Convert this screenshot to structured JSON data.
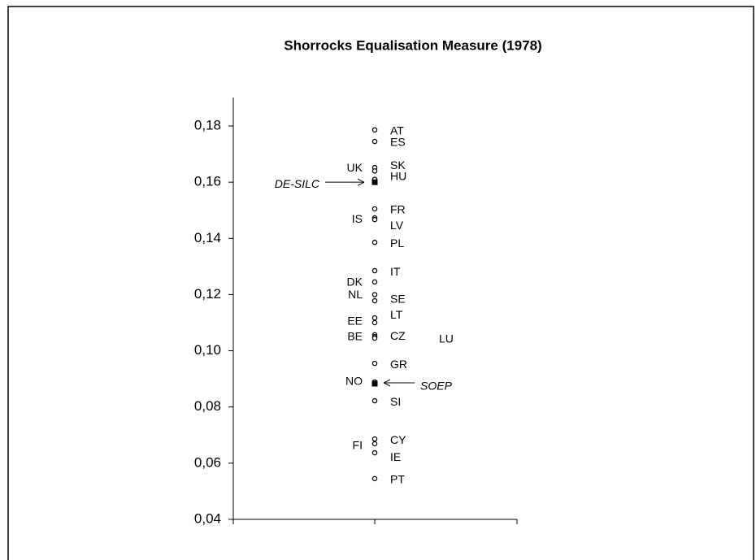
{
  "chart_data": {
    "type": "dotplot",
    "title": "Shorrocks Equalisation Measure (1978)",
    "ylim": [
      0.04,
      0.19
    ],
    "yticks": [
      {
        "value": 0.04,
        "label": "0,04"
      },
      {
        "value": 0.06,
        "label": "0,06"
      },
      {
        "value": 0.08,
        "label": "0,08"
      },
      {
        "value": 0.1,
        "label": "0,10"
      },
      {
        "value": 0.12,
        "label": "0,12"
      },
      {
        "value": 0.14,
        "label": "0,14"
      },
      {
        "value": 0.16,
        "label": "0,16"
      },
      {
        "value": 0.18,
        "label": "0,18"
      }
    ],
    "points": [
      {
        "label": "AT",
        "value": 0.1786,
        "marker": "circle"
      },
      {
        "label": "ES",
        "value": 0.1745,
        "marker": "circle"
      },
      {
        "label": "UK",
        "value": 0.1652,
        "marker": "circle"
      },
      {
        "label": "SK",
        "value": 0.164,
        "marker": "circle"
      },
      {
        "label": "HU",
        "value": 0.161,
        "marker": "circle"
      },
      {
        "label": "DE-SILC",
        "value": 0.16,
        "marker": "square"
      },
      {
        "label": "FR",
        "value": 0.1505,
        "marker": "circle"
      },
      {
        "label": "IS",
        "value": 0.1473,
        "marker": "circle"
      },
      {
        "label": "LV",
        "value": 0.1467,
        "marker": "circle"
      },
      {
        "label": "PL",
        "value": 0.1386,
        "marker": "circle"
      },
      {
        "label": "IT",
        "value": 0.1285,
        "marker": "circle"
      },
      {
        "label": "DK",
        "value": 0.1245,
        "marker": "circle"
      },
      {
        "label": "NL",
        "value": 0.12,
        "marker": "circle"
      },
      {
        "label": "SE",
        "value": 0.1178,
        "marker": "circle"
      },
      {
        "label": "LT",
        "value": 0.1117,
        "marker": "circle"
      },
      {
        "label": "EE",
        "value": 0.11,
        "marker": "circle"
      },
      {
        "label": "BE",
        "value": 0.1057,
        "marker": "circle"
      },
      {
        "label": "CZ",
        "value": 0.105,
        "marker": "circle"
      },
      {
        "label": "LU",
        "value": 0.1045,
        "marker": "circle"
      },
      {
        "label": "GR",
        "value": 0.0955,
        "marker": "circle"
      },
      {
        "label": "NO",
        "value": 0.0889,
        "marker": "circle"
      },
      {
        "label": "SOEP",
        "value": 0.0883,
        "marker": "square"
      },
      {
        "label": "SI",
        "value": 0.0822,
        "marker": "circle"
      },
      {
        "label": "CY",
        "value": 0.0686,
        "marker": "circle"
      },
      {
        "label": "FI",
        "value": 0.0669,
        "marker": "circle"
      },
      {
        "label": "IE",
        "value": 0.0637,
        "marker": "circle"
      },
      {
        "label": "PT",
        "value": 0.0545,
        "marker": "circle"
      }
    ]
  }
}
